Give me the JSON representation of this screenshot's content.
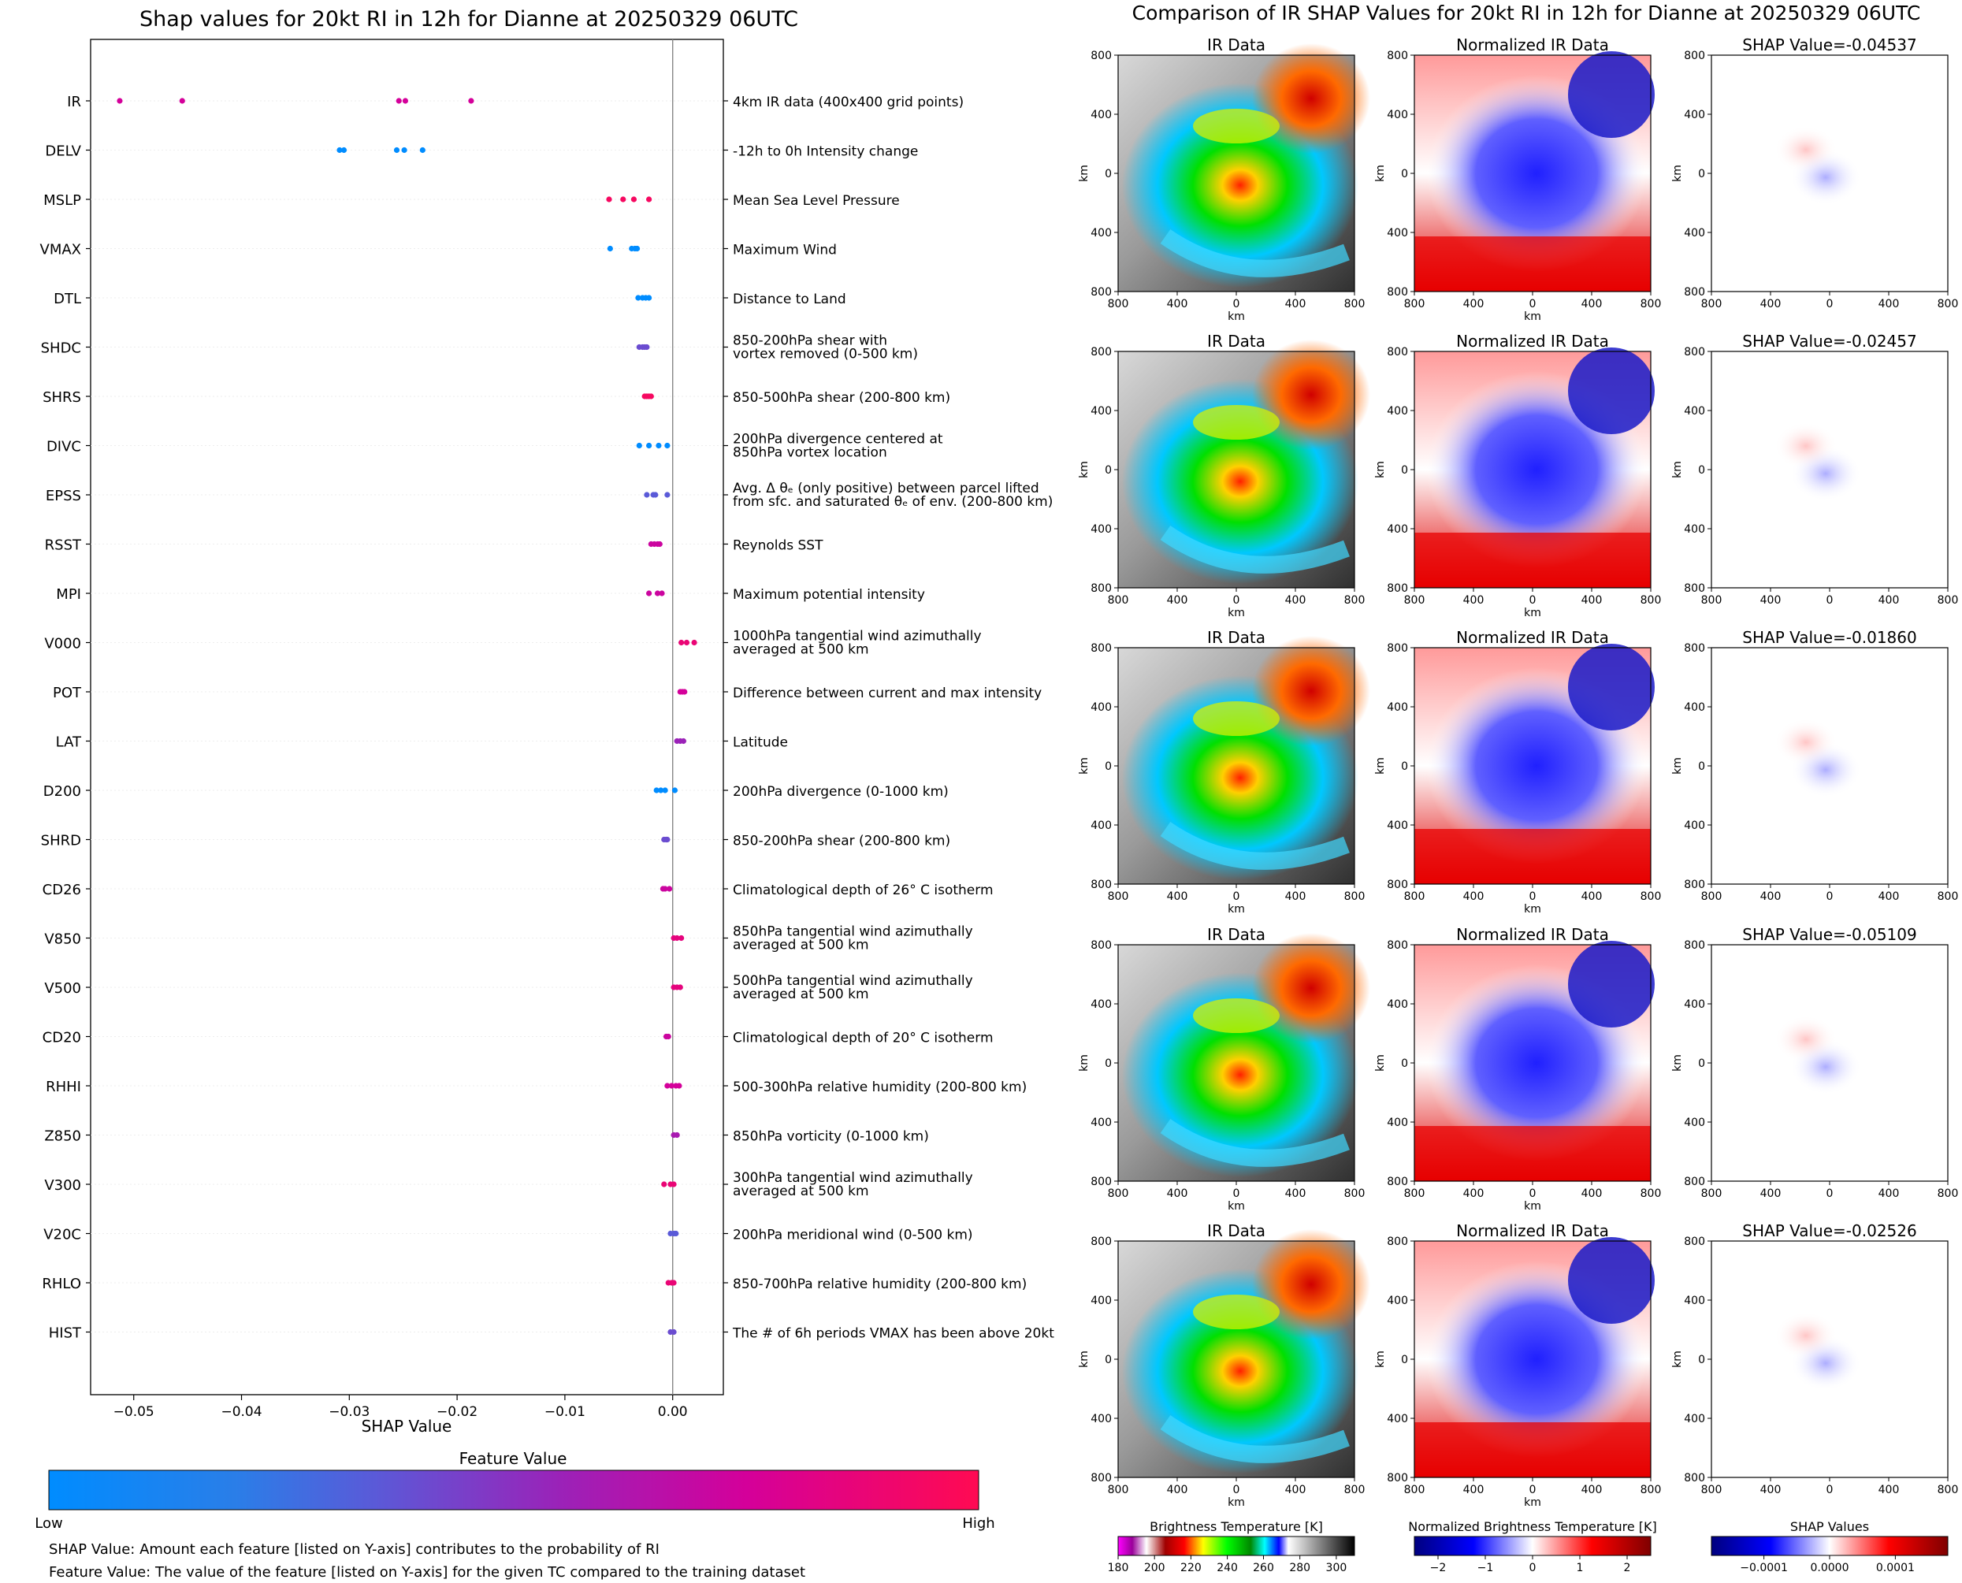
{
  "left_panel": {
    "title": "Shap values for 20kt RI in 12h for Dianne at 20250329 06UTC",
    "xlabel": "SHAP Value",
    "colorbar_title": "Feature Value",
    "colorbar_low": "Low",
    "colorbar_high": "High",
    "footnote_1": "SHAP Value: Amount each feature [listed on Y-axis] contributes to the probability of RI",
    "footnote_2": "Feature Value: The value of the feature [listed on Y-axis] for the given TC compared to the training dataset",
    "colors": {
      "low": "#0a8cf0",
      "mid": "#9b2ab4",
      "high": "#ff0a5a"
    }
  },
  "right_panel": {
    "title": "Comparison of IR SHAP Values for 20kt RI in 12h for Dianne at 20250329 06UTC",
    "col_titles": [
      "IR Data",
      "Normalized IR Data"
    ],
    "shap_titles": [
      "SHAP Value=-0.04537",
      "SHAP Value=-0.02457",
      "SHAP Value=-0.01860",
      "SHAP Value=-0.05109",
      "SHAP Value=-0.02526"
    ],
    "axis_ticks": [
      "800",
      "400",
      "0",
      "400",
      "800"
    ],
    "axis_unit": "km",
    "colorbars": [
      {
        "title": "Brightness Temperature [K]",
        "ticks": [
          "180",
          "200",
          "220",
          "240",
          "260",
          "280",
          "300"
        ]
      },
      {
        "title": "Normalized Brightness Temperature [K]",
        "ticks": [
          "−2",
          "−1",
          "0",
          "1",
          "2"
        ]
      },
      {
        "title": "SHAP Values",
        "ticks": [
          "−0.0001",
          "0.0000",
          "0.0001"
        ]
      }
    ]
  },
  "chart_data": [
    {
      "type": "scatter",
      "title": "Shap values for 20kt RI in 12h for Dianne at 20250329 06UTC",
      "xlabel": "SHAP Value",
      "xlim": [
        -0.054,
        0.0047
      ],
      "xticks": [
        "−0.05",
        "−0.04",
        "−0.03",
        "−0.02",
        "−0.01",
        "0.00"
      ],
      "xtick_values": [
        -0.05,
        -0.04,
        -0.03,
        -0.02,
        -0.01,
        0.0
      ],
      "features": [
        {
          "name": "IR",
          "desc": [
            "4km IR data (400x400 grid points)"
          ],
          "points": [
            -0.0513,
            -0.0455,
            -0.0254,
            -0.0248,
            -0.0187
          ],
          "fv": [
            0.75,
            0.75,
            0.75,
            0.75,
            0.75
          ]
        },
        {
          "name": "DELV",
          "desc": [
            "-12h to 0h Intensity change"
          ],
          "points": [
            -0.0309,
            -0.0305,
            -0.0256,
            -0.0249,
            -0.0232
          ],
          "fv": [
            0.0,
            0.0,
            0.0,
            0.0,
            0.0
          ]
        },
        {
          "name": "MSLP",
          "desc": [
            "Mean Sea Level Pressure"
          ],
          "points": [
            -0.0059,
            -0.0046,
            -0.0036,
            -0.0022
          ],
          "fv": [
            0.95,
            0.95,
            0.95,
            0.95
          ]
        },
        {
          "name": "VMAX",
          "desc": [
            "Maximum Wind"
          ],
          "points": [
            -0.0058,
            -0.0038,
            -0.0035,
            -0.0033
          ],
          "fv": [
            0.0,
            0.0,
            0.0,
            0.0
          ]
        },
        {
          "name": "DTL",
          "desc": [
            "Distance to Land"
          ],
          "points": [
            -0.0032,
            -0.0028,
            -0.0025,
            -0.0022
          ],
          "fv": [
            0.0,
            0.0,
            0.0,
            0.0
          ]
        },
        {
          "name": "SHDC",
          "desc": [
            "850-200hPa shear with",
            "vortex removed (0-500 km)"
          ],
          "points": [
            -0.0031,
            -0.0028,
            -0.0026,
            -0.0024
          ],
          "fv": [
            0.4,
            0.4,
            0.4,
            0.4
          ]
        },
        {
          "name": "SHRS",
          "desc": [
            "850-500hPa shear (200-800 km)"
          ],
          "points": [
            -0.0026,
            -0.0024,
            -0.0022,
            -0.002
          ],
          "fv": [
            0.95,
            0.95,
            0.95,
            0.95
          ]
        },
        {
          "name": "DIVC",
          "desc": [
            "200hPa divergence centered at",
            "850hPa vortex location"
          ],
          "points": [
            -0.0031,
            -0.0022,
            -0.0013,
            -0.0005
          ],
          "fv": [
            0.0,
            0.0,
            0.0,
            0.0
          ]
        },
        {
          "name": "EPSS",
          "desc": [
            "Avg. Δ θₑ (only positive) between parcel lifted",
            "from sfc. and saturated θₑ of env. (200-800 km)"
          ],
          "points": [
            -0.0024,
            -0.0018,
            -0.0016,
            -0.0005
          ],
          "fv": [
            0.35,
            0.35,
            0.35,
            0.35
          ]
        },
        {
          "name": "RSST",
          "desc": [
            "Reynolds SST"
          ],
          "points": [
            -0.002,
            -0.0017,
            -0.0014,
            -0.0012
          ],
          "fv": [
            0.72,
            0.72,
            0.72,
            0.72
          ]
        },
        {
          "name": "MPI",
          "desc": [
            "Maximum potential intensity"
          ],
          "points": [
            -0.0022,
            -0.0014,
            -0.001
          ],
          "fv": [
            0.72,
            0.72,
            0.72
          ]
        },
        {
          "name": "V000",
          "desc": [
            "1000hPa tangential wind azimuthally",
            "averaged at 500 km"
          ],
          "points": [
            0.0008,
            0.0013,
            0.002
          ],
          "fv": [
            0.88,
            0.88,
            0.88
          ]
        },
        {
          "name": "POT",
          "desc": [
            "Difference between current and max intensity"
          ],
          "points": [
            0.0007,
            0.0009,
            0.0011
          ],
          "fv": [
            0.75,
            0.75,
            0.75
          ]
        },
        {
          "name": "LAT",
          "desc": [
            "Latitude"
          ],
          "points": [
            0.0004,
            0.0007,
            0.001
          ],
          "fv": [
            0.55,
            0.55,
            0.55
          ]
        },
        {
          "name": "D200",
          "desc": [
            "200hPa divergence (0-1000 km)"
          ],
          "points": [
            -0.0015,
            -0.0011,
            -0.0007,
            0.0002
          ],
          "fv": [
            0.0,
            0.0,
            0.0,
            0.0
          ]
        },
        {
          "name": "SHRD",
          "desc": [
            "850-200hPa shear (200-800 km)"
          ],
          "points": [
            -0.0008,
            -0.0006,
            -0.0005
          ],
          "fv": [
            0.4,
            0.4,
            0.4
          ]
        },
        {
          "name": "CD26",
          "desc": [
            "Climatological depth of 26° C isotherm"
          ],
          "points": [
            -0.0009,
            -0.0007,
            -0.0003
          ],
          "fv": [
            0.72,
            0.72,
            0.72
          ]
        },
        {
          "name": "V850",
          "desc": [
            "850hPa tangential wind azimuthally",
            "averaged at 500 km"
          ],
          "points": [
            0.0001,
            0.0004,
            0.0008
          ],
          "fv": [
            0.85,
            0.85,
            0.85
          ]
        },
        {
          "name": "V500",
          "desc": [
            "500hPa tangential wind azimuthally",
            "averaged at 500 km"
          ],
          "points": [
            0.0001,
            0.0004,
            0.0007
          ],
          "fv": [
            0.85,
            0.85,
            0.85
          ]
        },
        {
          "name": "CD20",
          "desc": [
            "Climatological depth of 20° C isotherm"
          ],
          "points": [
            -0.0006,
            -0.0004
          ],
          "fv": [
            0.72,
            0.72
          ]
        },
        {
          "name": "RHHI",
          "desc": [
            "500-300hPa relative humidity (200-800 km)"
          ],
          "points": [
            -0.0005,
            -0.0001,
            0.0003,
            0.0006
          ],
          "fv": [
            0.75,
            0.75,
            0.75,
            0.75
          ]
        },
        {
          "name": "Z850",
          "desc": [
            "850hPa vorticity (0-1000 km)"
          ],
          "points": [
            0.0001,
            0.0004
          ],
          "fv": [
            0.6,
            0.6
          ]
        },
        {
          "name": "V300",
          "desc": [
            "300hPa tangential wind azimuthally",
            "averaged at 500 km"
          ],
          "points": [
            -0.0008,
            -0.0002,
            0.0001
          ],
          "fv": [
            0.88,
            0.88,
            0.88
          ]
        },
        {
          "name": "V20C",
          "desc": [
            "200hPa meridional wind (0-500 km)"
          ],
          "points": [
            -0.0002,
            0.0001,
            0.0003
          ],
          "fv": [
            0.35,
            0.35,
            0.35
          ]
        },
        {
          "name": "RHLO",
          "desc": [
            "850-700hPa relative humidity (200-800 km)"
          ],
          "points": [
            -0.0004,
            -0.0001,
            0.0001
          ],
          "fv": [
            0.88,
            0.88,
            0.88
          ]
        },
        {
          "name": "HIST",
          "desc": [
            "The # of 6h periods VMAX has been above 20kt"
          ],
          "points": [
            -0.0002,
            0.0001
          ],
          "fv": [
            0.4,
            0.4
          ]
        }
      ]
    },
    {
      "type": "heatmap",
      "title": "Comparison of IR SHAP Values for 20kt RI in 12h for Dianne at 20250329 06UTC",
      "rows": 5,
      "panels": [
        "IR Data",
        "Normalized IR Data",
        "SHAP Value"
      ],
      "shap_values": [
        -0.04537,
        -0.02457,
        -0.0186,
        -0.05109,
        -0.02526
      ],
      "x_range_km": [
        -800,
        800
      ],
      "y_range_km": [
        -800,
        800
      ],
      "colorbars": [
        {
          "label": "Brightness Temperature [K]",
          "range": [
            180,
            310
          ]
        },
        {
          "label": "Normalized Brightness Temperature [K]",
          "range": [
            -2.5,
            2.5
          ]
        },
        {
          "label": "SHAP Values",
          "range": [
            -0.00018,
            0.00018
          ]
        }
      ]
    }
  ]
}
